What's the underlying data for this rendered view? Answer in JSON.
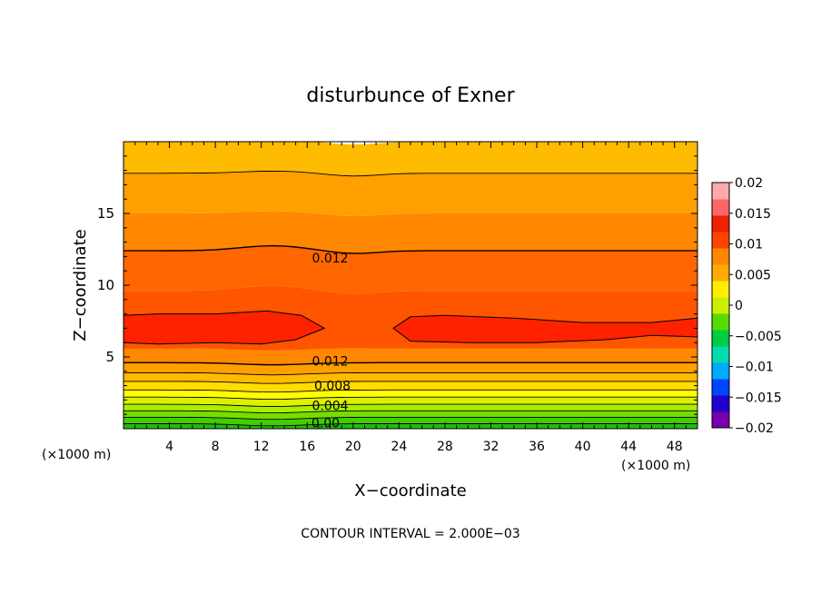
{
  "chart_data": {
    "type": "heatmap",
    "title": "disturbunce of Exner",
    "xlabel": "X−coordinate",
    "ylabel": "Z−coordinate",
    "x_unit": "(×1000 m)",
    "z_unit": "(×1000 m)",
    "xlim": [
      0,
      50
    ],
    "ylim": [
      0,
      20
    ],
    "x_ticks": [
      4,
      8,
      12,
      16,
      20,
      24,
      28,
      32,
      36,
      40,
      44,
      48
    ],
    "y_ticks": [
      5,
      10,
      15
    ],
    "footer": "CONTOUR INTERVAL = 2.000E−03",
    "color_levels": [
      -0.02,
      -0.015,
      -0.01,
      -0.005,
      0,
      0.005,
      0.01,
      0.015,
      0.02
    ],
    "colorbar_labels": [
      "0.02",
      "0.015",
      "0.01",
      "0.005",
      "0",
      "−0.005",
      "−0.01",
      "−0.015",
      "−0.02"
    ],
    "contour_labels": [
      {
        "text": "0.012",
        "x": 18.0,
        "z": 11.9
      },
      {
        "text": "0.012",
        "x": 18.0,
        "z": 4.7
      },
      {
        "text": "0.008",
        "x": 18.2,
        "z": 3.0
      },
      {
        "text": "0.004",
        "x": 18.0,
        "z": 1.6
      },
      {
        "text": "0.00",
        "x": 17.6,
        "z": 0.4
      }
    ],
    "bands": [
      {
        "z0": 0.0,
        "z1": 0.35,
        "value": 0.0,
        "color": "#22bb11"
      },
      {
        "z0": 0.35,
        "z1": 0.8,
        "value": 0.002,
        "color": "#44cc00"
      },
      {
        "z0": 0.8,
        "z1": 1.25,
        "value": 0.004,
        "color": "#77dd00"
      },
      {
        "z0": 1.25,
        "z1": 1.7,
        "value": 0.005,
        "color": "#aaee00"
      },
      {
        "z0": 1.7,
        "z1": 2.2,
        "value": 0.006,
        "color": "#ddf000"
      },
      {
        "z0": 2.2,
        "z1": 2.7,
        "value": 0.007,
        "color": "#ffff00"
      },
      {
        "z0": 2.7,
        "z1": 3.3,
        "value": 0.008,
        "color": "#ffdd00"
      },
      {
        "z0": 3.3,
        "z1": 3.9,
        "value": 0.009,
        "color": "#ffbb00"
      },
      {
        "z0": 3.9,
        "z1": 4.6,
        "value": 0.01,
        "color": "#ffa000"
      },
      {
        "z0": 4.6,
        "z1": 5.6,
        "value": 0.011,
        "color": "#ff8800"
      },
      {
        "z0": 5.6,
        "z1": 9.6,
        "value": 0.013,
        "color": "#ff5500"
      },
      {
        "z0": 9.6,
        "z1": 12.4,
        "value": 0.012,
        "color": "#ff6600"
      },
      {
        "z0": 12.4,
        "z1": 15.0,
        "value": 0.011,
        "color": "#ff8800"
      },
      {
        "z0": 15.0,
        "z1": 17.8,
        "value": 0.01,
        "color": "#ffa000"
      },
      {
        "z0": 17.8,
        "z1": 20.0,
        "value": 0.009,
        "color": "#ffbb00"
      }
    ],
    "core_color": "#ff2200",
    "colorbar_colors": [
      "#7700aa",
      "#2200cc",
      "#0044ff",
      "#00aaff",
      "#00ddaa",
      "#00cc44",
      "#55dd00",
      "#ccee00",
      "#ffee00",
      "#ffaa00",
      "#ff8800",
      "#ff4400",
      "#ee2200",
      "#ff6666",
      "#ffaaaa"
    ]
  }
}
